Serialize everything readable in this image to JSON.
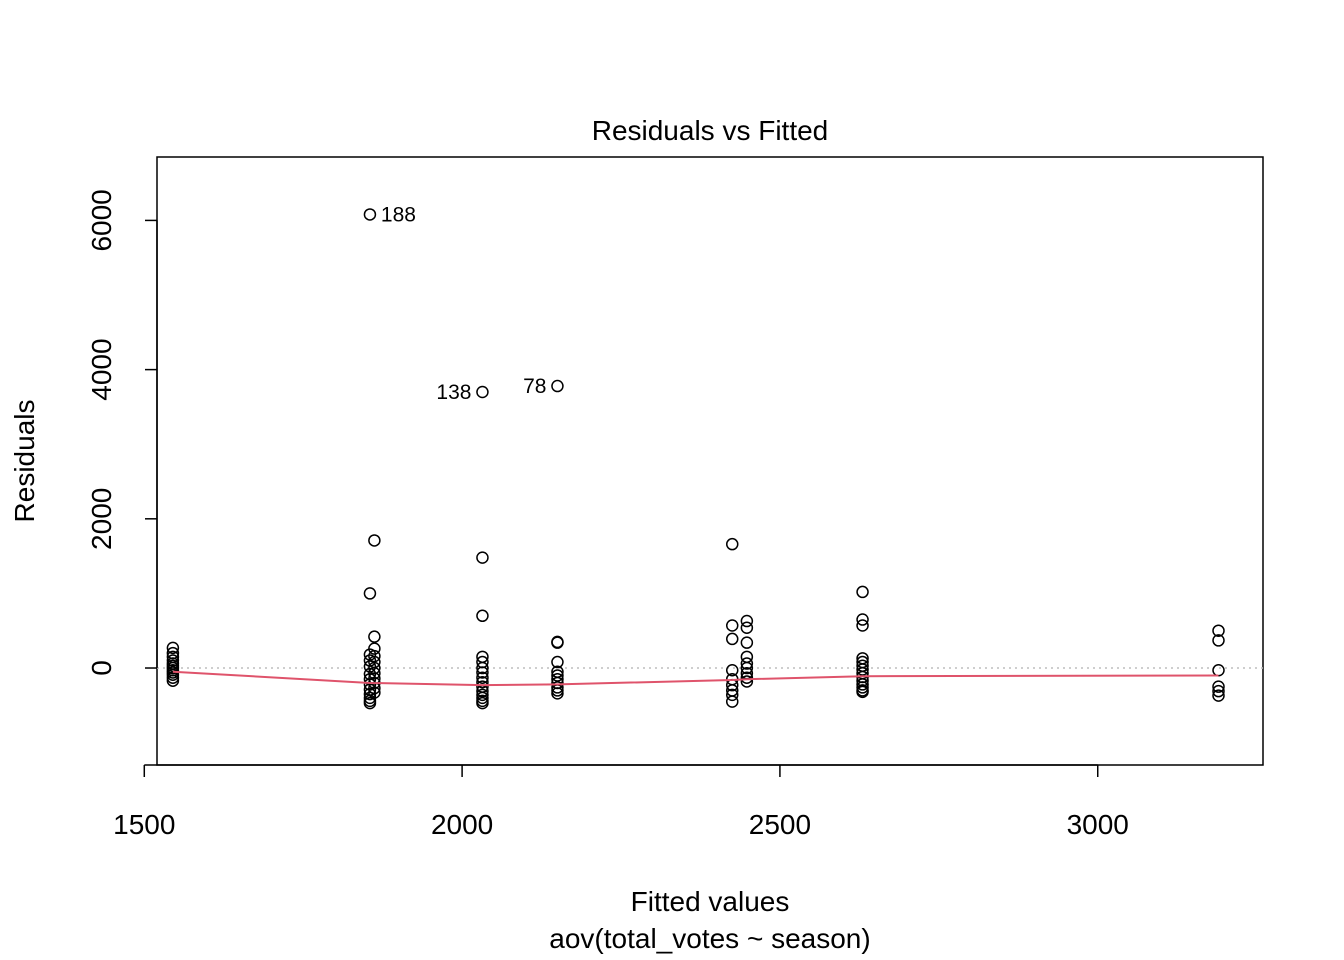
{
  "chart_data": {
    "type": "scatter",
    "title": "Residuals vs Fitted",
    "xlabel": "Fitted values",
    "xlabel_sub": "aov(total_votes ~ season)",
    "ylabel": "Residuals",
    "xlim": [
      1520,
      3260
    ],
    "ylim": [
      -1300,
      6850
    ],
    "x_ticks": [
      1500,
      2000,
      2500,
      3000
    ],
    "y_ticks": [
      0,
      2000,
      4000,
      6000
    ],
    "grid": false,
    "zero_line": {
      "y": 0,
      "color": "#bebebe",
      "style": "dotted"
    },
    "smoother": {
      "color": "#DF536B",
      "points": [
        [
          1545,
          -50
        ],
        [
          1855,
          -200
        ],
        [
          2032,
          -230
        ],
        [
          2150,
          -220
        ],
        [
          2425,
          -160
        ],
        [
          2448,
          -150
        ],
        [
          2630,
          -110
        ],
        [
          3190,
          -100
        ]
      ]
    },
    "point_color": "#000000",
    "points": [
      [
        1545,
        270
      ],
      [
        1545,
        200
      ],
      [
        1545,
        150
      ],
      [
        1545,
        100
      ],
      [
        1545,
        60
      ],
      [
        1545,
        30
      ],
      [
        1545,
        0
      ],
      [
        1545,
        -30
      ],
      [
        1545,
        -60
      ],
      [
        1545,
        -90
      ],
      [
        1545,
        -130
      ],
      [
        1545,
        -170
      ],
      [
        1855,
        6080
      ],
      [
        1855,
        1000
      ],
      [
        1855,
        180
      ],
      [
        1855,
        100
      ],
      [
        1855,
        20
      ],
      [
        1855,
        -80
      ],
      [
        1855,
        -150
      ],
      [
        1855,
        -220
      ],
      [
        1855,
        -290
      ],
      [
        1855,
        -350
      ],
      [
        1855,
        -400
      ],
      [
        1855,
        -440
      ],
      [
        1855,
        -470
      ],
      [
        1862,
        1710
      ],
      [
        1862,
        420
      ],
      [
        1862,
        260
      ],
      [
        1862,
        160
      ],
      [
        1862,
        80
      ],
      [
        1862,
        0
      ],
      [
        1862,
        -70
      ],
      [
        1862,
        -140
      ],
      [
        1862,
        -200
      ],
      [
        1862,
        -270
      ],
      [
        1862,
        -330
      ],
      [
        2032,
        3700
      ],
      [
        2032,
        1480
      ],
      [
        2032,
        700
      ],
      [
        2032,
        150
      ],
      [
        2032,
        80
      ],
      [
        2032,
        0
      ],
      [
        2032,
        -60
      ],
      [
        2032,
        -130
      ],
      [
        2032,
        -190
      ],
      [
        2032,
        -250
      ],
      [
        2032,
        -310
      ],
      [
        2032,
        -360
      ],
      [
        2032,
        -400
      ],
      [
        2032,
        -440
      ],
      [
        2032,
        -470
      ],
      [
        2150,
        3780
      ],
      [
        2150,
        350
      ],
      [
        2150,
        340
      ],
      [
        2150,
        80
      ],
      [
        2150,
        -50
      ],
      [
        2150,
        -100
      ],
      [
        2150,
        -150
      ],
      [
        2150,
        -200
      ],
      [
        2150,
        -260
      ],
      [
        2150,
        -300
      ],
      [
        2150,
        -340
      ],
      [
        2425,
        1660
      ],
      [
        2425,
        570
      ],
      [
        2425,
        390
      ],
      [
        2425,
        -30
      ],
      [
        2425,
        -150
      ],
      [
        2425,
        -230
      ],
      [
        2425,
        -300
      ],
      [
        2425,
        -360
      ],
      [
        2425,
        -450
      ],
      [
        2448,
        630
      ],
      [
        2448,
        540
      ],
      [
        2448,
        340
      ],
      [
        2448,
        150
      ],
      [
        2448,
        60
      ],
      [
        2448,
        0
      ],
      [
        2448,
        -70
      ],
      [
        2448,
        -130
      ],
      [
        2448,
        -180
      ],
      [
        2630,
        1020
      ],
      [
        2630,
        650
      ],
      [
        2630,
        570
      ],
      [
        2630,
        130
      ],
      [
        2630,
        80
      ],
      [
        2630,
        30
      ],
      [
        2630,
        -20
      ],
      [
        2630,
        -70
      ],
      [
        2630,
        -120
      ],
      [
        2630,
        -170
      ],
      [
        2630,
        -220
      ],
      [
        2630,
        -260
      ],
      [
        2630,
        -300
      ],
      [
        2630,
        -320
      ],
      [
        3190,
        500
      ],
      [
        3190,
        370
      ],
      [
        3190,
        -30
      ],
      [
        3190,
        -250
      ],
      [
        3190,
        -310
      ],
      [
        3190,
        -370
      ]
    ],
    "labeled_points": [
      {
        "label": "188",
        "x": 1855,
        "y": 6080,
        "side": "right"
      },
      {
        "label": "138",
        "x": 2032,
        "y": 3700,
        "side": "left"
      },
      {
        "label": "78",
        "x": 2150,
        "y": 3780,
        "side": "left"
      }
    ]
  }
}
